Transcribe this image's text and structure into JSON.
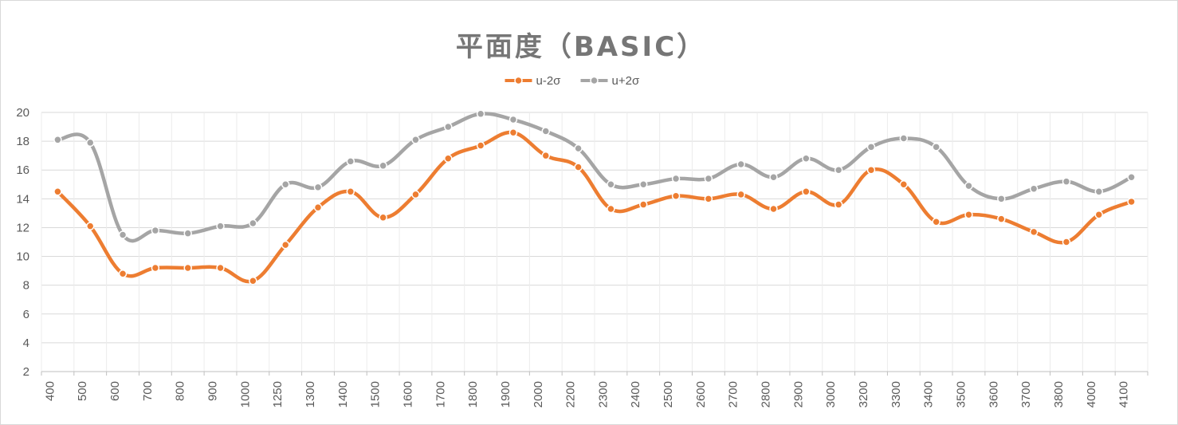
{
  "chart_data": {
    "type": "line",
    "title": "平面度（BASIC）",
    "xlabel": "",
    "ylabel": "",
    "categories": [
      "400",
      "500",
      "600",
      "700",
      "800",
      "900",
      "1000",
      "1250",
      "1300",
      "1400",
      "1500",
      "1600",
      "1700",
      "1800",
      "1900",
      "2000",
      "2200",
      "2300",
      "2400",
      "2500",
      "2600",
      "2700",
      "2800",
      "2900",
      "3000",
      "3200",
      "3300",
      "3400",
      "3500",
      "3600",
      "3700",
      "3800",
      "4000",
      "4100"
    ],
    "ylim": [
      2,
      20
    ],
    "yticks": [
      2,
      4,
      6,
      8,
      10,
      12,
      14,
      16,
      18,
      20
    ],
    "grid": true,
    "smooth": true,
    "legend_position": "top",
    "series": [
      {
        "name": "u-2σ",
        "color": "#ed7d31",
        "values": [
          14.5,
          12.1,
          8.8,
          9.2,
          9.2,
          9.2,
          8.3,
          10.8,
          13.4,
          14.5,
          12.7,
          14.3,
          16.8,
          17.7,
          18.6,
          17.0,
          16.2,
          13.3,
          13.6,
          14.2,
          14.0,
          14.3,
          13.3,
          14.5,
          13.6,
          16.0,
          15.0,
          12.4,
          12.9,
          12.6,
          11.7,
          11.0,
          12.9,
          13.8
        ]
      },
      {
        "name": "u+2σ",
        "color": "#a5a5a5",
        "values": [
          18.1,
          17.9,
          11.5,
          11.8,
          11.6,
          12.1,
          12.3,
          15.0,
          14.8,
          16.6,
          16.3,
          18.1,
          19.0,
          19.9,
          19.5,
          18.7,
          17.5,
          15.0,
          15.0,
          15.4,
          15.4,
          16.4,
          15.5,
          16.8,
          16.0,
          17.6,
          18.2,
          17.6,
          14.9,
          14.0,
          14.7,
          15.2,
          14.5,
          15.5
        ]
      }
    ]
  }
}
